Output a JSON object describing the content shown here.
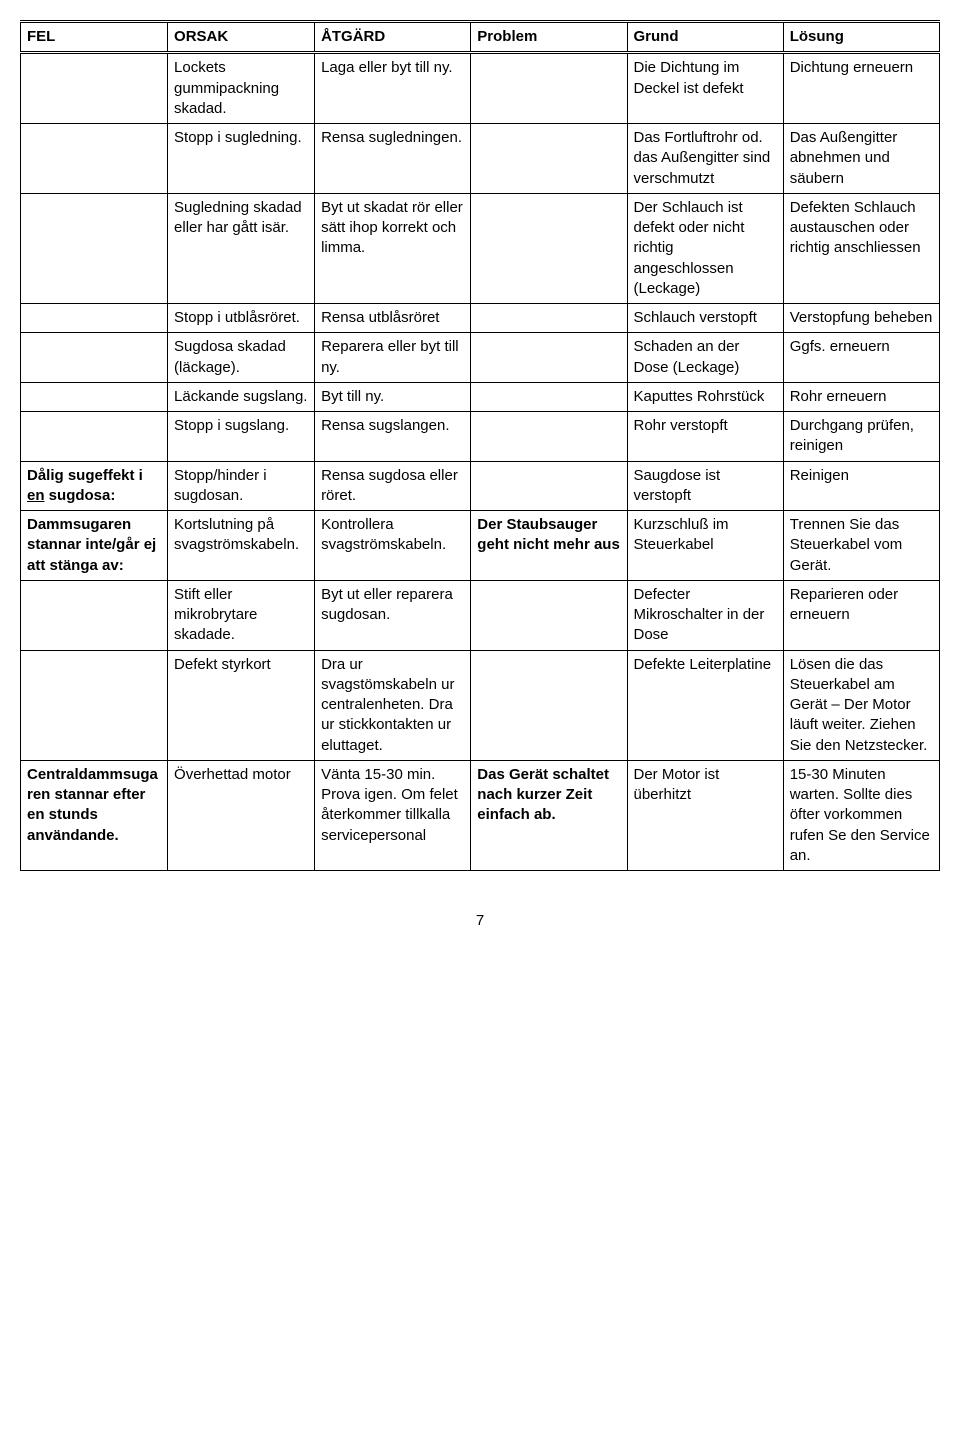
{
  "headers": [
    "FEL",
    "ORSAK",
    "ÅTGÄRD",
    "Problem",
    "Grund",
    "Lösung"
  ],
  "rows": [
    {
      "c1": "",
      "c2": "Lockets gummipackning skadad.",
      "c3": "Laga eller byt till ny.",
      "c4": "",
      "c5": "Die Dichtung im Deckel ist defekt",
      "c6": "Dichtung erneuern"
    },
    {
      "c1": "",
      "c2": "Stopp i sugledning.",
      "c3": "Rensa sugledningen.",
      "c4": "",
      "c5": "Das Fortluftrohr od. das Außengitter sind verschmutzt",
      "c6": "Das Außengitter abnehmen und säubern"
    },
    {
      "c1": "",
      "c2": "Sugledning skadad eller har gått isär.",
      "c3": "Byt ut skadat rör eller sätt ihop korrekt och limma.",
      "c4": "",
      "c5": "Der Schlauch ist defekt oder nicht richtig angeschlossen (Leckage)",
      "c6": "Defekten Schlauch austauschen oder richtig anschliessen"
    },
    {
      "c1": "",
      "c2": "Stopp i utblåsröret.",
      "c3": "Rensa utblåsröret",
      "c4": "",
      "c5": "Schlauch verstopft",
      "c6": "Verstopfung beheben"
    },
    {
      "c1": "",
      "c2": "Sugdosa skadad (läckage).",
      "c3": "Reparera eller byt till ny.",
      "c4": "",
      "c5": "Schaden an der Dose (Leckage)",
      "c6": "Ggfs. erneuern"
    },
    {
      "c1": "",
      "c2": "Läckande sugslang.",
      "c3": "Byt till ny.",
      "c4": "",
      "c5": "Kaputtes Rohrstück",
      "c6": "Rohr erneuern"
    },
    {
      "c1": "",
      "c2": "Stopp i sugslang.",
      "c3": "Rensa sugslangen.",
      "c4": "",
      "c5": "Rohr verstopft",
      "c6": "Durchgang prüfen, reinigen"
    },
    {
      "c1": "Dålig sugeffekt i <u>en</u> sugdosa:",
      "c2": "Stopp/hinder i sugdosan.",
      "c3": "Rensa sugdosa eller röret.",
      "c4": "",
      "c5": "Saugdose ist verstopft",
      "c6": "Reinigen"
    },
    {
      "c1": "Dammsugaren stannar inte/går ej att stänga av:",
      "c2": "Kortslutning på svagströmskabeln.",
      "c3": "Kontrollera svagströmskabeln.",
      "c4": "<b>Der Staubsauger geht nicht mehr aus</b>",
      "c5": "Kurzschluß im Steuerkabel",
      "c6": "Trennen Sie das Steuerkabel vom Gerät."
    },
    {
      "c1": "",
      "c2": "Stift eller mikrobrytare skadade.",
      "c3": "Byt ut eller reparera sugdosan.",
      "c4": "",
      "c5": "Defecter Mikroschalter in der Dose",
      "c6": "Reparieren oder erneuern"
    },
    {
      "c1": "",
      "c2": "Defekt styrkort",
      "c3": "Dra ur svagstömskabeln ur centralenheten. Dra ur stickkontakten ur eluttaget.",
      "c4": "",
      "c5": "Defekte Leiterplatine",
      "c6": "Lösen die das Steuerkabel am Gerät – Der Motor läuft weiter. Ziehen Sie den Netzstecker."
    },
    {
      "c1": "Centraldammsugaren stannar efter en stunds användande.",
      "c2": "Överhettad motor",
      "c3": "Vänta 15-30 min. Prova igen. Om felet återkommer tillkalla servicepersonal",
      "c4": "<b>Das Gerät schaltet nach kurzer Zeit einfach ab.</b>",
      "c5": "Der Motor ist überhitzt",
      "c6": "15-30 Minuten warten. Sollte dies öfter vorkommen rufen Se den Service an."
    }
  ],
  "pageNumber": "7"
}
